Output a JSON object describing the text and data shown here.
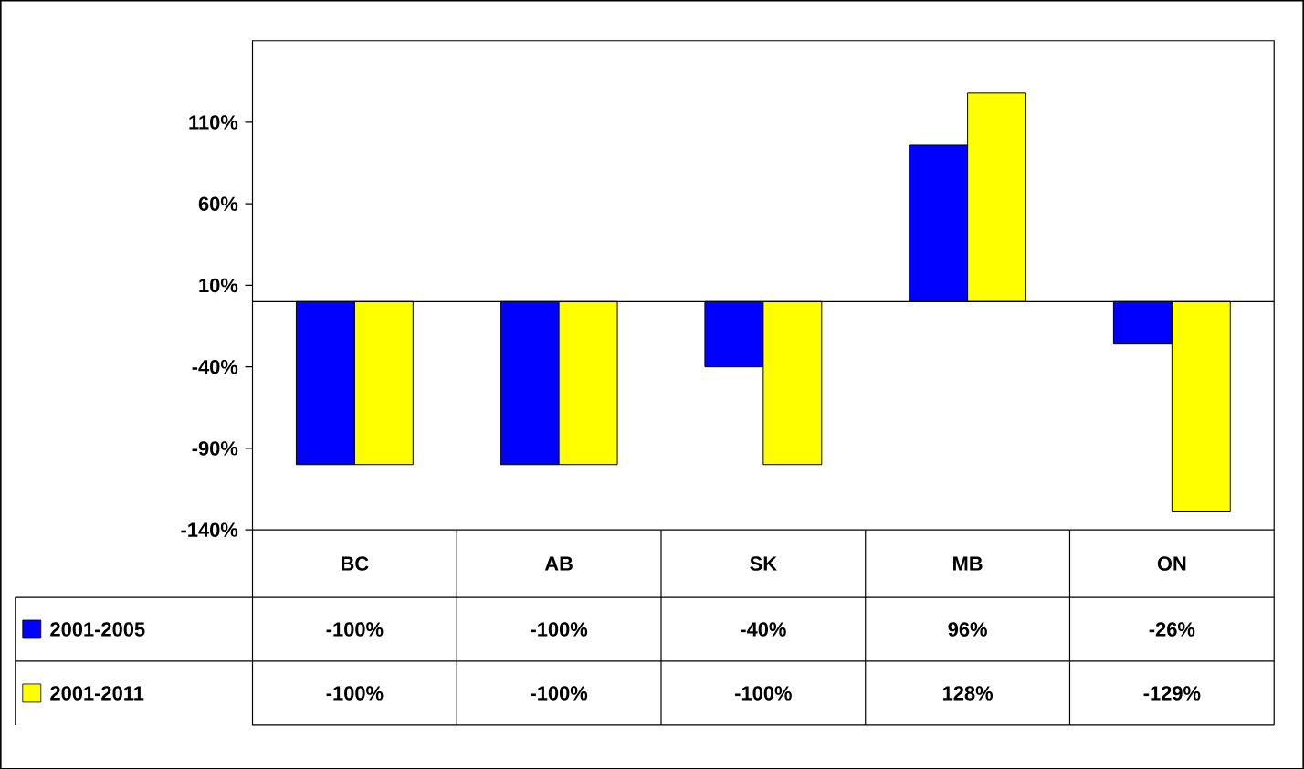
{
  "chart_data": {
    "type": "bar",
    "categories": [
      "BC",
      "AB",
      "SK",
      "MB",
      "ON"
    ],
    "series": [
      {
        "name": "2001-2005",
        "color": "#0000ff",
        "values": [
          -100,
          -100,
          -40,
          96,
          -26
        ],
        "value_labels": [
          "-100%",
          "-100%",
          "-40%",
          "96%",
          "-26%"
        ]
      },
      {
        "name": "2001-2011",
        "color": "#ffff00",
        "values": [
          -100,
          -100,
          -100,
          128,
          -129
        ],
        "value_labels": [
          "-100%",
          "-100%",
          "-100%",
          "128%",
          "-129%"
        ]
      }
    ],
    "ylim": [
      -140,
      160
    ],
    "yticks": [
      {
        "value": -140,
        "label": "-140%"
      },
      {
        "value": -90,
        "label": "-90%"
      },
      {
        "value": -40,
        "label": "-40%"
      },
      {
        "value": 10,
        "label": "10%"
      },
      {
        "value": 60,
        "label": "60%"
      },
      {
        "value": 110,
        "label": "110%"
      }
    ],
    "legend": "bottom"
  }
}
